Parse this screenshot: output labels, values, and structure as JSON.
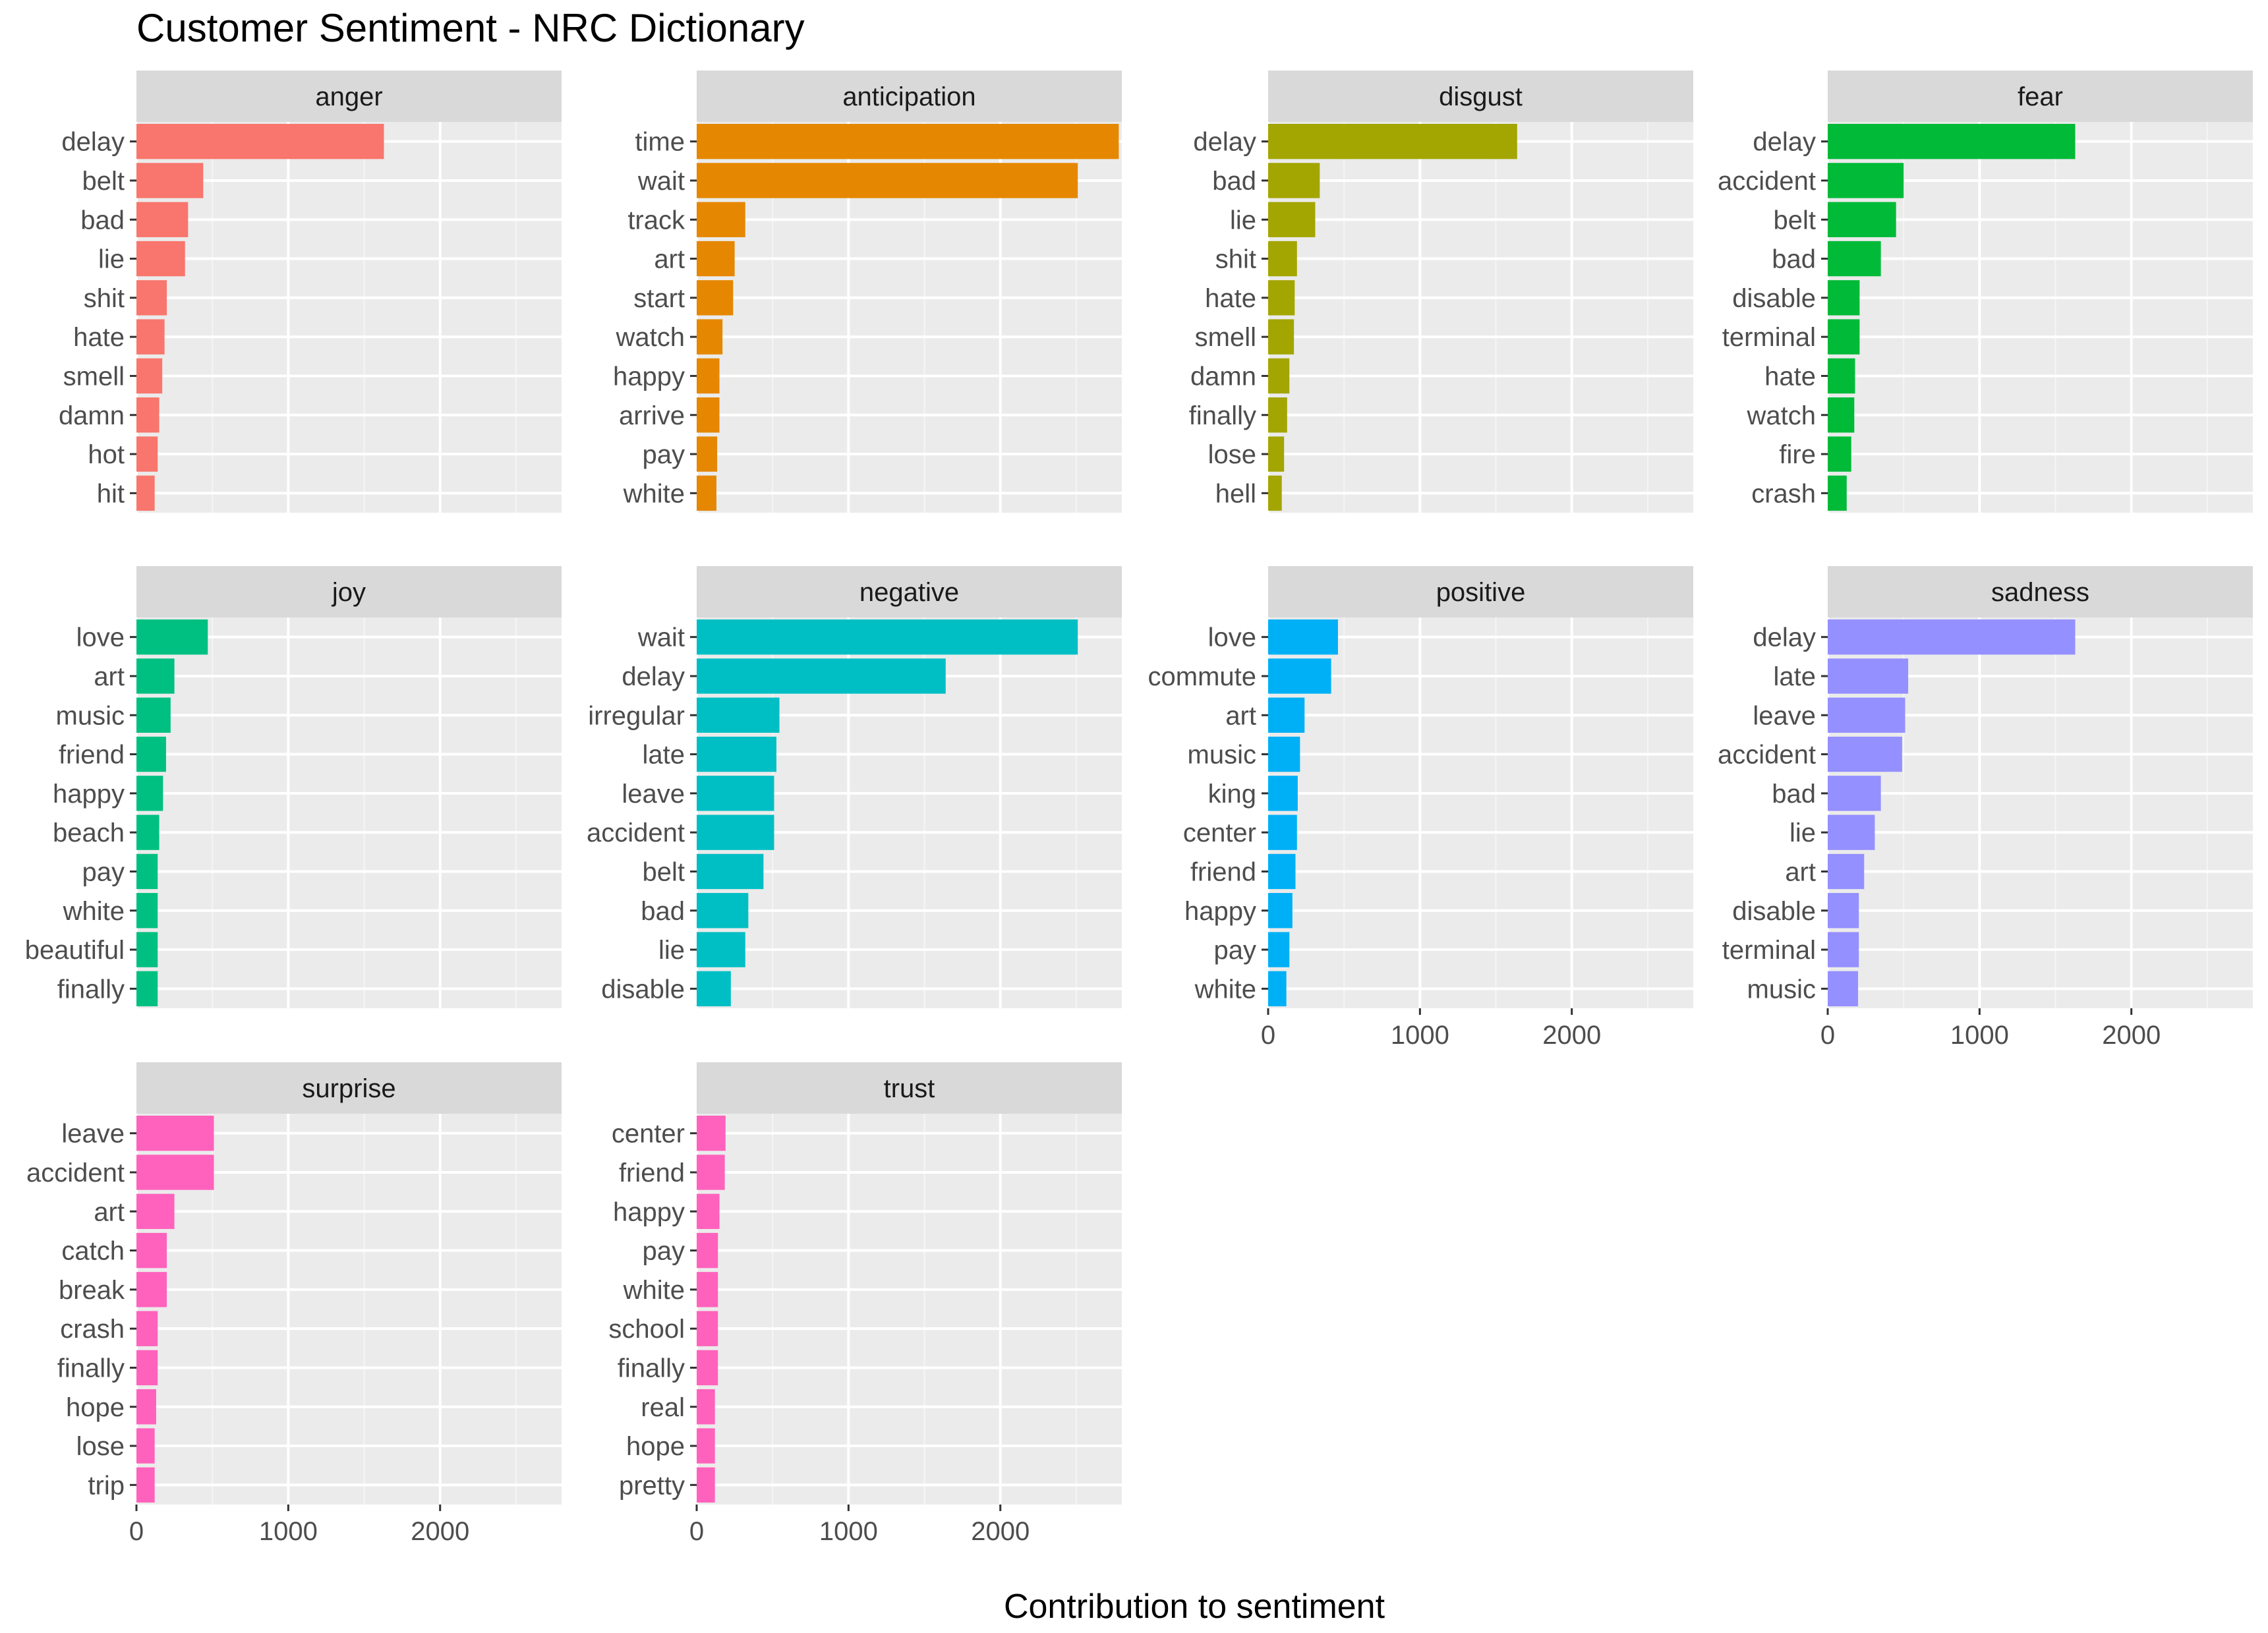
{
  "title": "Customer Sentiment - NRC Dictionary",
  "chart_data": {
    "type": "bar",
    "orientation": "horizontal",
    "title": "Customer Sentiment - NRC Dictionary",
    "xlabel": "Contribution to sentiment",
    "ylabel": "",
    "xlim": [
      0,
      2800
    ],
    "x_ticks": [
      0,
      1000,
      2000
    ],
    "x_tick_labels": [
      "0",
      "1000",
      "2000"
    ],
    "grid": true,
    "facets": [
      {
        "name": "anger",
        "color": "#F8766D",
        "categories": [
          "delay",
          "belt",
          "bad",
          "lie",
          "shit",
          "hate",
          "smell",
          "damn",
          "hot",
          "hit"
        ],
        "values": [
          1630,
          440,
          340,
          320,
          200,
          185,
          170,
          150,
          140,
          120
        ]
      },
      {
        "name": "anticipation",
        "color": "#E58700",
        "categories": [
          "time",
          "wait",
          "track",
          "art",
          "start",
          "watch",
          "happy",
          "arrive",
          "pay",
          "white"
        ],
        "values": [
          2780,
          2510,
          320,
          250,
          240,
          170,
          150,
          150,
          135,
          130
        ]
      },
      {
        "name": "disgust",
        "color": "#A3A500",
        "categories": [
          "delay",
          "bad",
          "lie",
          "shit",
          "hate",
          "smell",
          "damn",
          "finally",
          "lose",
          "hell"
        ],
        "values": [
          1640,
          340,
          310,
          190,
          175,
          170,
          140,
          125,
          105,
          90
        ]
      },
      {
        "name": "fear",
        "color": "#00BA38",
        "categories": [
          "delay",
          "accident",
          "belt",
          "bad",
          "disable",
          "terminal",
          "hate",
          "watch",
          "fire",
          "crash"
        ],
        "values": [
          1630,
          500,
          450,
          350,
          210,
          210,
          180,
          175,
          155,
          125
        ]
      },
      {
        "name": "joy",
        "color": "#00C081",
        "categories": [
          "love",
          "art",
          "music",
          "friend",
          "happy",
          "beach",
          "pay",
          "white",
          "beautiful",
          "finally"
        ],
        "values": [
          470,
          250,
          225,
          195,
          175,
          150,
          140,
          140,
          140,
          140
        ]
      },
      {
        "name": "negative",
        "color": "#00BFC4",
        "categories": [
          "wait",
          "delay",
          "irregular",
          "late",
          "leave",
          "accident",
          "belt",
          "bad",
          "lie",
          "disable"
        ],
        "values": [
          2510,
          1640,
          545,
          525,
          510,
          510,
          440,
          340,
          320,
          225
        ]
      },
      {
        "name": "positive",
        "color": "#00B0F6",
        "categories": [
          "love",
          "commute",
          "art",
          "music",
          "king",
          "center",
          "friend",
          "happy",
          "pay",
          "white"
        ],
        "values": [
          460,
          415,
          240,
          210,
          195,
          190,
          180,
          160,
          140,
          120
        ]
      },
      {
        "name": "sadness",
        "color": "#9590FF",
        "categories": [
          "delay",
          "late",
          "leave",
          "accident",
          "bad",
          "lie",
          "art",
          "disable",
          "terminal",
          "music"
        ],
        "values": [
          1630,
          530,
          510,
          490,
          350,
          310,
          240,
          205,
          205,
          200
        ]
      },
      {
        "name": "surprise",
        "color": "#FF62BC",
        "categories": [
          "leave",
          "accident",
          "art",
          "catch",
          "break",
          "crash",
          "finally",
          "hope",
          "lose",
          "trip"
        ],
        "values": [
          510,
          510,
          250,
          200,
          200,
          140,
          140,
          130,
          120,
          120
        ]
      },
      {
        "name": "trust",
        "color": "#FF62BC",
        "categories": [
          "center",
          "friend",
          "happy",
          "pay",
          "white",
          "school",
          "finally",
          "real",
          "hope",
          "pretty"
        ],
        "values": [
          190,
          185,
          150,
          140,
          140,
          140,
          140,
          120,
          120,
          120
        ]
      }
    ]
  }
}
